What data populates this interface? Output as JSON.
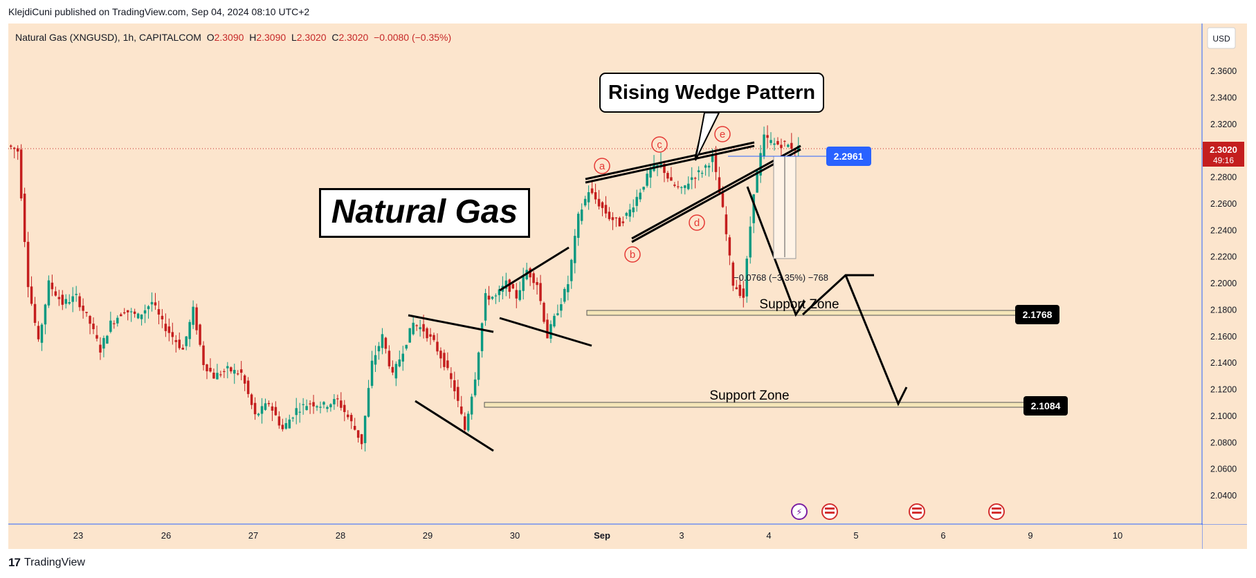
{
  "header": {
    "published": "KlejdiCuni published on TradingView.com, Sep 04, 2024 08:10 UTC+2"
  },
  "symbol": {
    "name": "Natural Gas (XNGUSD), 1h, CAPITALCOM",
    "o_label": "O",
    "o": "2.3090",
    "h_label": "H",
    "h": "2.3090",
    "l_label": "L",
    "l": "2.3020",
    "c_label": "C",
    "c": "2.3020",
    "change": "−0.0080 (−0.35%)"
  },
  "currency": "USD",
  "annotations": {
    "title": "Natural Gas",
    "callout": "Rising Wedge Pattern",
    "support1": "Support Zone",
    "support2": "Support Zone",
    "measure": "−0.0768 (−3.35%) −768",
    "wave_labels": [
      "a",
      "b",
      "c",
      "d",
      "e"
    ]
  },
  "price_tags": {
    "current_price": "2.3020",
    "countdown": "49:16",
    "entry": "2.2961",
    "support1": "2.1768",
    "support2": "2.1084"
  },
  "footer": {
    "brand": "TradingView"
  },
  "colors": {
    "bull": "#089981",
    "bear": "#c41e1e",
    "background": "#fce5cd",
    "price_tag": "#c41e1e",
    "entry_tag": "#2962ff"
  },
  "chart_data": {
    "type": "candlestick",
    "instrument": "Natural Gas (XNGUSD)",
    "timeframe": "1h",
    "ylim": [
      2.02,
      2.38
    ],
    "y_ticks": [
      "2.3600",
      "2.3400",
      "2.3200",
      "2.3000",
      "2.2800",
      "2.2600",
      "2.2400",
      "2.2200",
      "2.2000",
      "2.1800",
      "2.1600",
      "2.1400",
      "2.1200",
      "2.1000",
      "2.0800",
      "2.0600",
      "2.0400"
    ],
    "x_ticks": [
      "23",
      "26",
      "27",
      "28",
      "29",
      "30",
      "Sep",
      "3",
      "4",
      "5",
      "6",
      "9",
      "10"
    ],
    "path_points": [
      [
        0,
        2.304
      ],
      [
        3,
        2.3
      ],
      [
        6,
        2.2
      ],
      [
        9,
        2.155
      ],
      [
        12,
        2.2
      ],
      [
        16,
        2.185
      ],
      [
        20,
        2.19
      ],
      [
        24,
        2.17
      ],
      [
        27,
        2.15
      ],
      [
        30,
        2.17
      ],
      [
        34,
        2.18
      ],
      [
        38,
        2.175
      ],
      [
        42,
        2.186
      ],
      [
        45,
        2.17
      ],
      [
        48,
        2.16
      ],
      [
        51,
        2.15
      ],
      [
        54,
        2.18
      ],
      [
        57,
        2.14
      ],
      [
        60,
        2.13
      ],
      [
        64,
        2.135
      ],
      [
        68,
        2.132
      ],
      [
        72,
        2.1
      ],
      [
        76,
        2.11
      ],
      [
        80,
        2.09
      ],
      [
        84,
        2.105
      ],
      [
        88,
        2.11
      ],
      [
        92,
        2.108
      ],
      [
        96,
        2.112
      ],
      [
        100,
        2.095
      ],
      [
        103,
        2.08
      ],
      [
        106,
        2.14
      ],
      [
        109,
        2.16
      ],
      [
        112,
        2.13
      ],
      [
        115,
        2.15
      ],
      [
        118,
        2.17
      ],
      [
        121,
        2.165
      ],
      [
        124,
        2.155
      ],
      [
        127,
        2.14
      ],
      [
        130,
        2.12
      ],
      [
        133,
        2.09
      ],
      [
        136,
        2.13
      ],
      [
        139,
        2.19
      ],
      [
        142,
        2.19
      ],
      [
        145,
        2.2
      ],
      [
        148,
        2.19
      ],
      [
        151,
        2.21
      ],
      [
        154,
        2.2
      ],
      [
        157,
        2.16
      ],
      [
        160,
        2.18
      ],
      [
        163,
        2.2
      ],
      [
        166,
        2.25
      ],
      [
        169,
        2.27
      ],
      [
        172,
        2.26
      ],
      [
        175,
        2.25
      ],
      [
        178,
        2.245
      ],
      [
        181,
        2.255
      ],
      [
        184,
        2.27
      ],
      [
        187,
        2.285
      ],
      [
        190,
        2.29
      ],
      [
        193,
        2.275
      ],
      [
        196,
        2.27
      ],
      [
        199,
        2.28
      ],
      [
        202,
        2.285
      ],
      [
        205,
        2.295
      ],
      [
        208,
        2.255
      ],
      [
        211,
        2.2
      ],
      [
        214,
        2.19
      ],
      [
        217,
        2.27
      ],
      [
        220,
        2.31
      ],
      [
        223,
        2.305
      ],
      [
        226,
        2.305
      ],
      [
        229,
        2.302
      ]
    ],
    "x_range": [
      0,
      230
    ]
  }
}
